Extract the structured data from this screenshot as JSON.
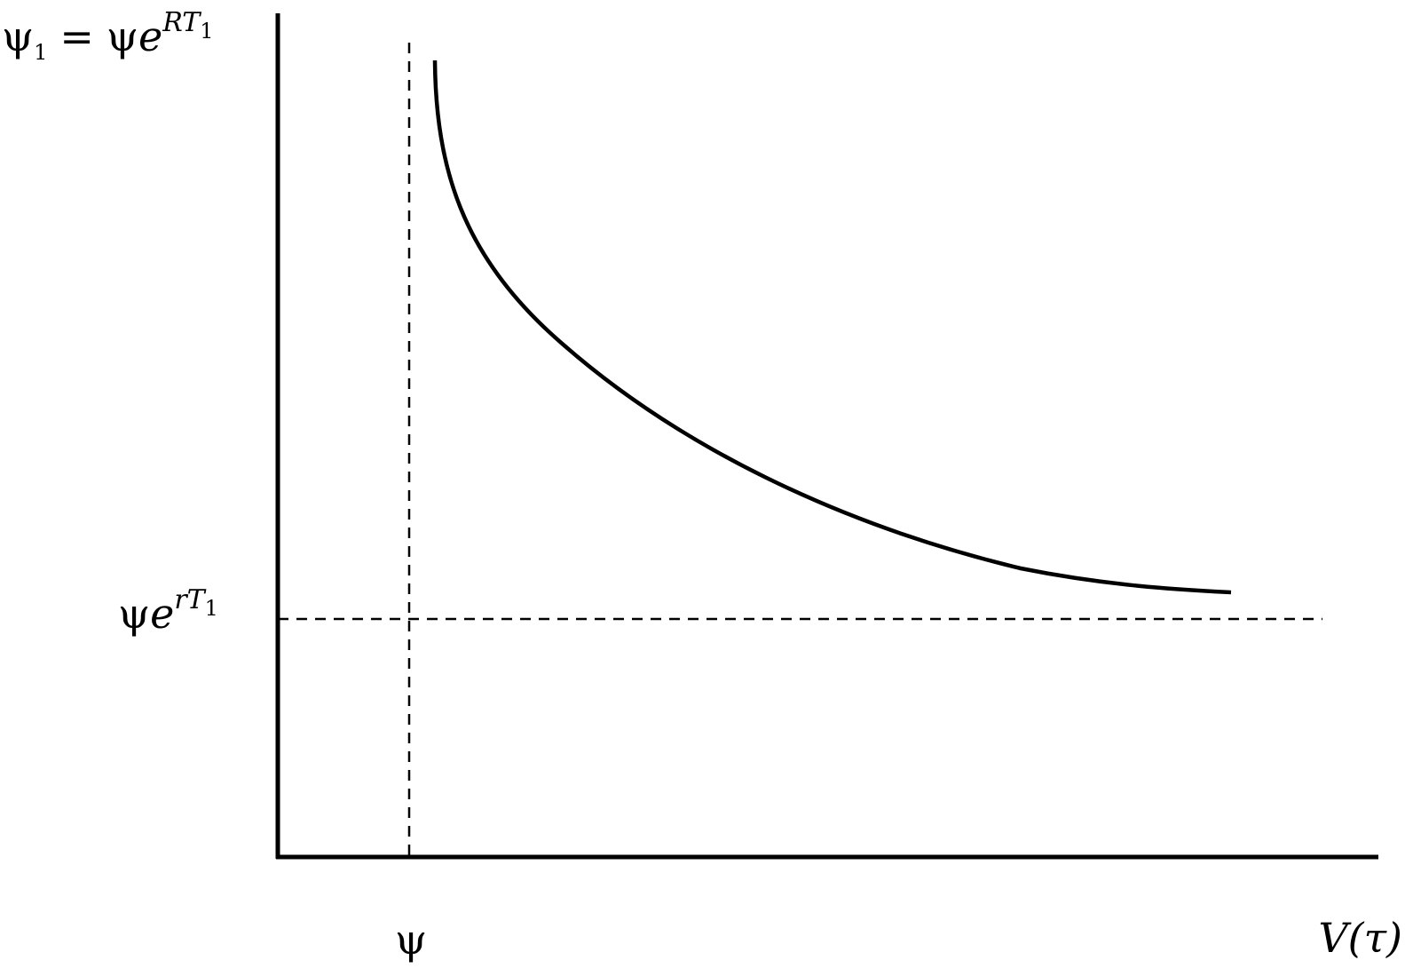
{
  "axis_labels": {
    "y_top": {
      "lhs": "ψ",
      "lhs_sub": "1",
      "equals": "=",
      "rhs_psi": "ψ",
      "rhs_e": "e",
      "rhs_sup": "RT",
      "rhs_sup_sub": "1"
    },
    "y_mid": {
      "psi": "ψ",
      "e": "e",
      "sup": "rT",
      "sup_sub": "1"
    },
    "x_mark": "ψ",
    "x_axis": "V(τ)"
  }
}
